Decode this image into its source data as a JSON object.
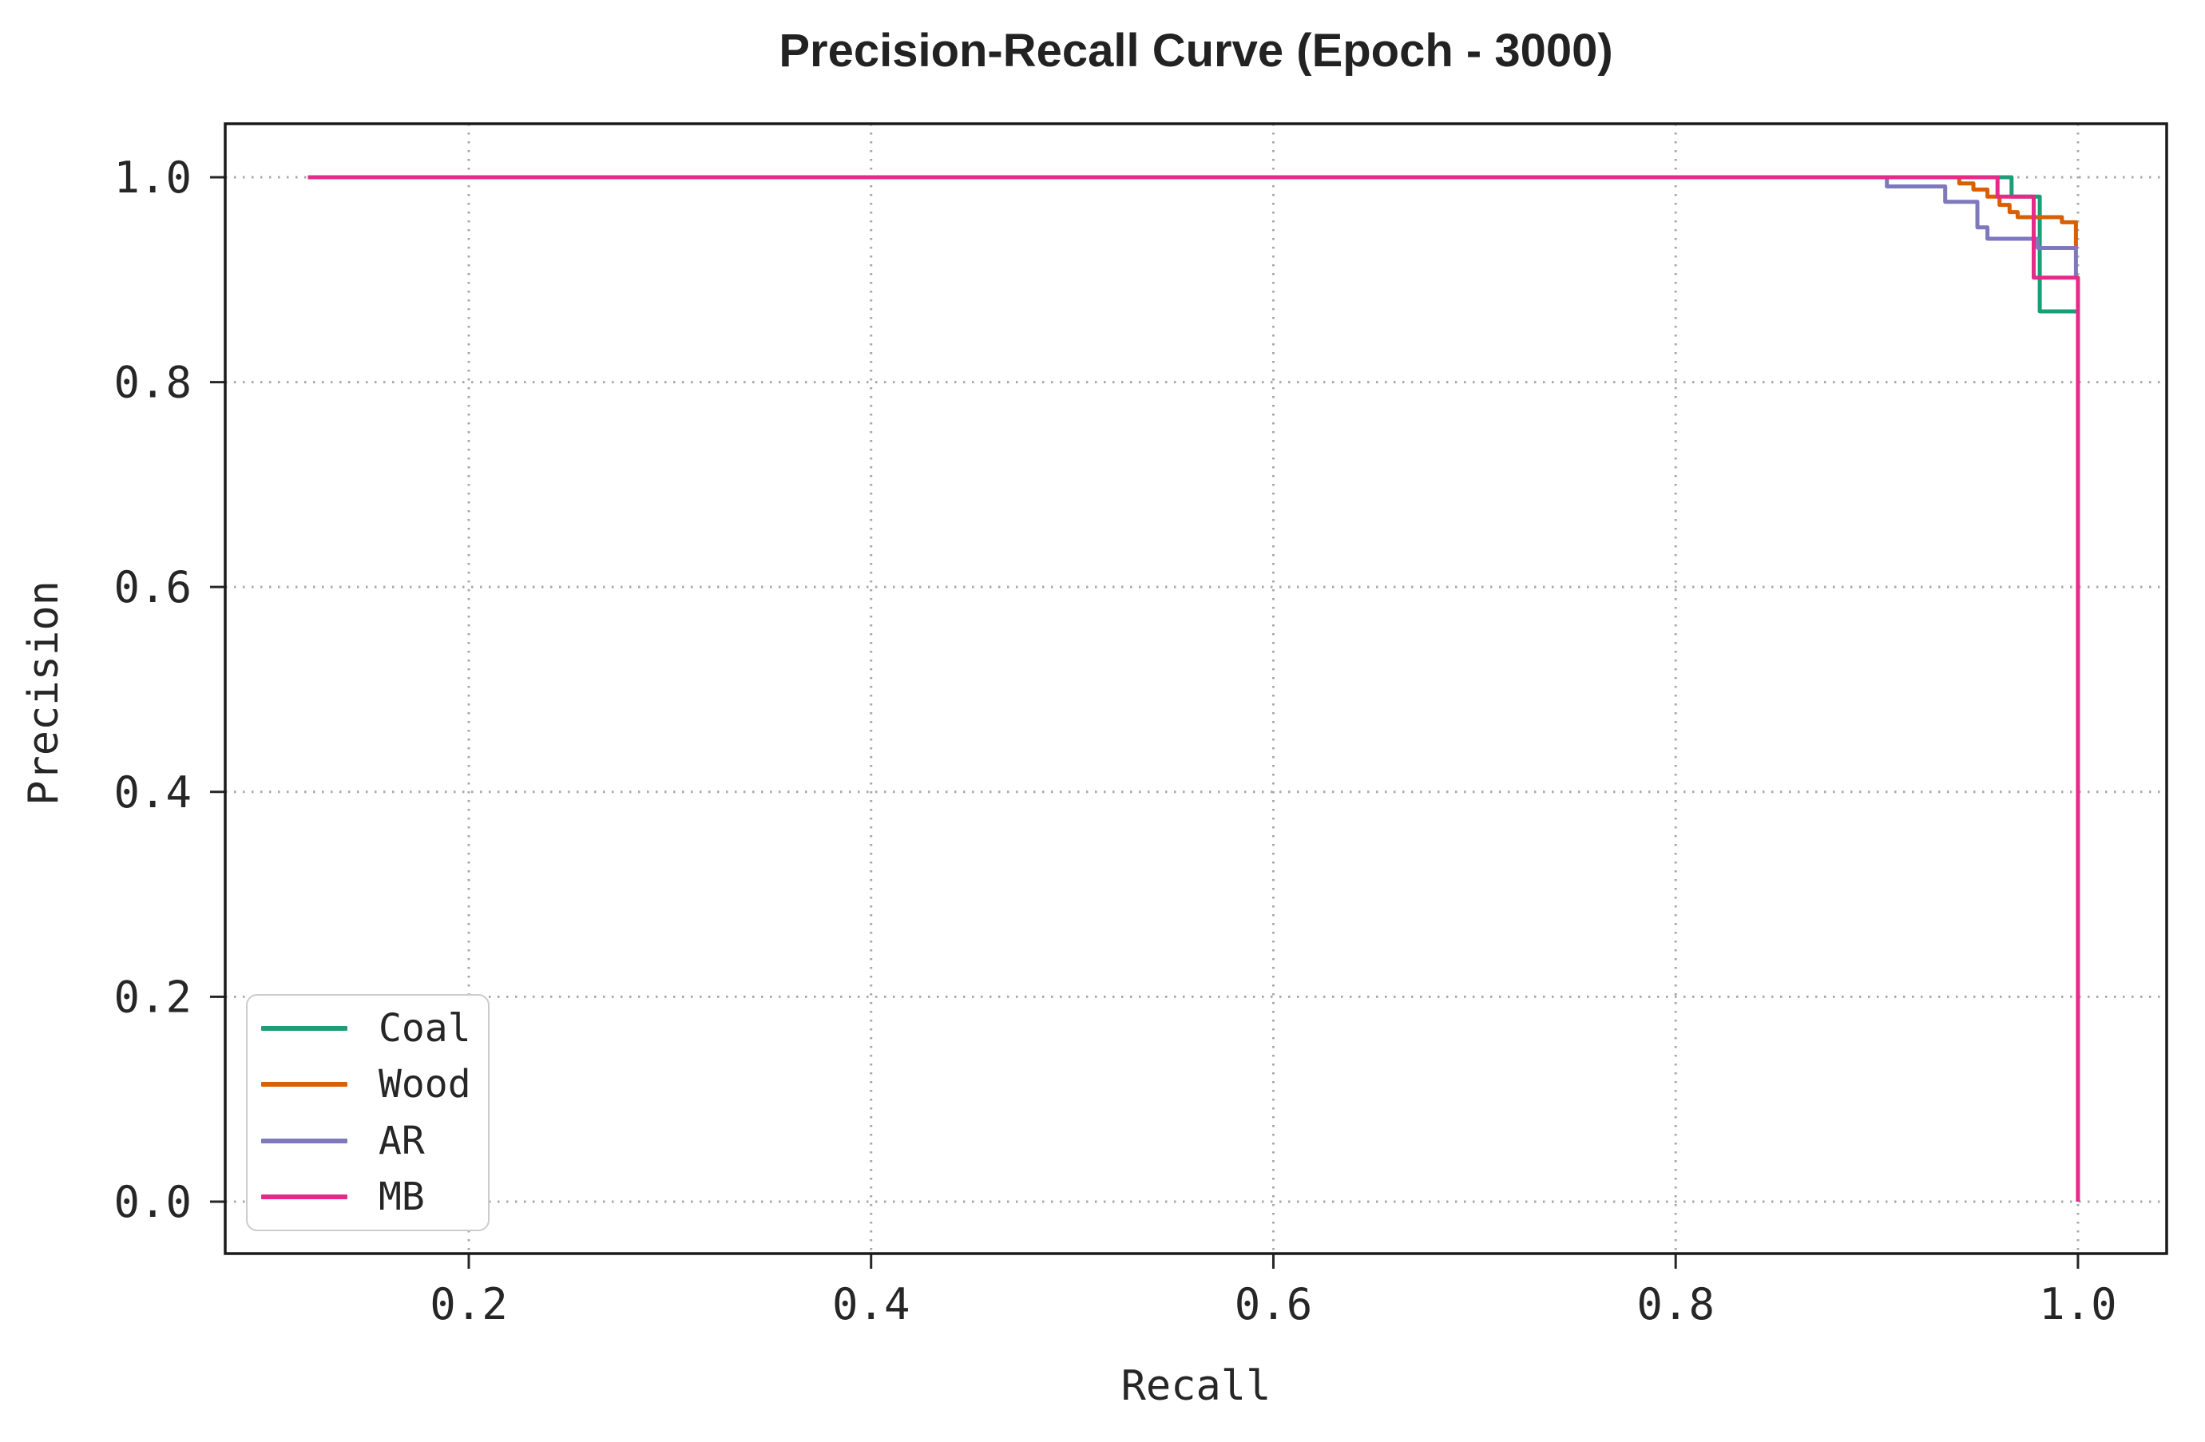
{
  "figure": {
    "title": "Precision-Recall Curve (Epoch - 3000)",
    "xlabel": "Recall",
    "ylabel": "Precision"
  },
  "chart_data": {
    "type": "line",
    "subtype": "step-precision-recall-curves",
    "title": "Precision-Recall Curve (Epoch - 3000)",
    "xlabel": "Recall",
    "ylabel": "Precision",
    "xlim": [
      0.0789,
      1.0441
    ],
    "ylim": [
      -0.0507,
      1.0522
    ],
    "x_ticks": [
      0.2,
      0.4,
      0.6,
      0.8,
      1.0
    ],
    "x_tick_labels": [
      "0.2",
      "0.4",
      "0.6",
      "0.8",
      "1.0"
    ],
    "y_ticks": [
      0.0,
      0.2,
      0.4,
      0.6,
      0.8,
      1.0
    ],
    "y_tick_labels": [
      "0.0",
      "0.2",
      "0.4",
      "0.6",
      "0.8",
      "1.0"
    ],
    "grid": "dotted",
    "grid_color": "#a8a8a8",
    "legend_position": "lower left",
    "series": [
      {
        "name": "Coal",
        "color": "#1b9e77",
        "points": [
          [
            0.146,
            1.0
          ],
          [
            0.967,
            1.0
          ],
          [
            0.967,
            0.981
          ],
          [
            0.981,
            0.981
          ],
          [
            0.981,
            0.869
          ],
          [
            1.0,
            0.869
          ]
        ]
      },
      {
        "name": "Wood",
        "color": "#d95f02",
        "points": [
          [
            0.146,
            1.0
          ],
          [
            0.941,
            1.0
          ],
          [
            0.941,
            0.994
          ],
          [
            0.948,
            0.994
          ],
          [
            0.948,
            0.988
          ],
          [
            0.955,
            0.988
          ],
          [
            0.955,
            0.981
          ],
          [
            0.961,
            0.981
          ],
          [
            0.961,
            0.973
          ],
          [
            0.966,
            0.973
          ],
          [
            0.966,
            0.966
          ],
          [
            0.97,
            0.966
          ],
          [
            0.97,
            0.961
          ],
          [
            0.992,
            0.961
          ],
          [
            0.992,
            0.956
          ],
          [
            0.999,
            0.956
          ],
          [
            0.999,
            0.934
          ],
          [
            1.0,
            0.934
          ]
        ]
      },
      {
        "name": "AR",
        "color": "#7e78bd",
        "points": [
          [
            0.146,
            1.0
          ],
          [
            0.905,
            1.0
          ],
          [
            0.905,
            0.991
          ],
          [
            0.934,
            0.991
          ],
          [
            0.934,
            0.976
          ],
          [
            0.95,
            0.976
          ],
          [
            0.95,
            0.951
          ],
          [
            0.955,
            0.951
          ],
          [
            0.955,
            0.94
          ],
          [
            0.98,
            0.94
          ],
          [
            0.98,
            0.931
          ],
          [
            0.999,
            0.931
          ],
          [
            0.999,
            0.904
          ],
          [
            1.0,
            0.904
          ]
        ]
      },
      {
        "name": "MB",
        "color": "#e7298a",
        "points": [
          [
            0.12,
            1.0
          ],
          [
            0.96,
            1.0
          ],
          [
            0.96,
            0.981
          ],
          [
            0.978,
            0.981
          ],
          [
            0.978,
            0.902
          ],
          [
            1.0,
            0.902
          ],
          [
            1.0,
            0.0
          ]
        ]
      }
    ]
  }
}
